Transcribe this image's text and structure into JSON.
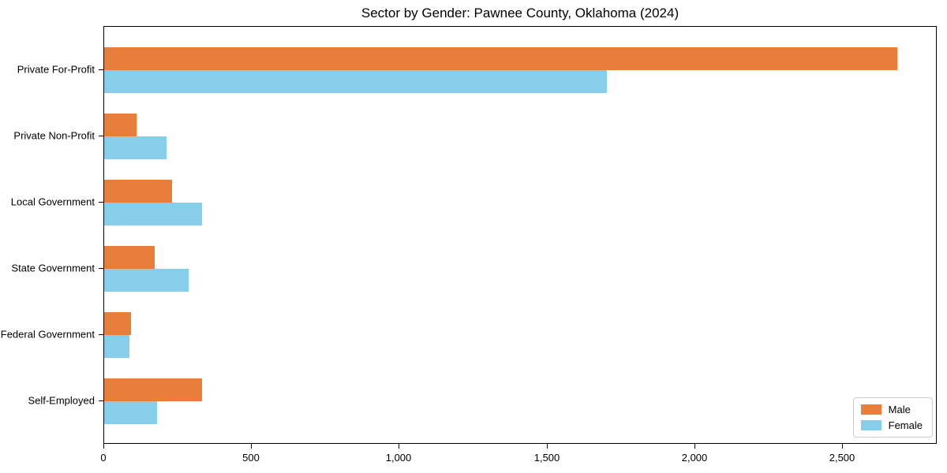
{
  "chart_data": {
    "type": "bar",
    "orientation": "horizontal",
    "title": "Sector by Gender: Pawnee County, Oklahoma (2024)",
    "categories": [
      "Private For-Profit",
      "Private Non-Profit",
      "Local Government",
      "State Government",
      "Federal Government",
      "Self-Employed"
    ],
    "series": [
      {
        "name": "Male",
        "color": "#E87E3C",
        "values": [
          2685,
          110,
          230,
          170,
          90,
          330
        ]
      },
      {
        "name": "Female",
        "color": "#87CEEB",
        "values": [
          1700,
          210,
          330,
          285,
          85,
          180
        ]
      }
    ],
    "xlabel": "",
    "ylabel": "",
    "xlim": [
      0,
      2820
    ],
    "x_ticks": [
      0,
      500,
      1000,
      1500,
      2000,
      2500
    ],
    "x_tick_labels": [
      "0",
      "500",
      "1,000",
      "1,500",
      "2,000",
      "2,500"
    ],
    "grid": false,
    "legend": {
      "position": "lower right",
      "entries": [
        "Male",
        "Female"
      ]
    }
  }
}
